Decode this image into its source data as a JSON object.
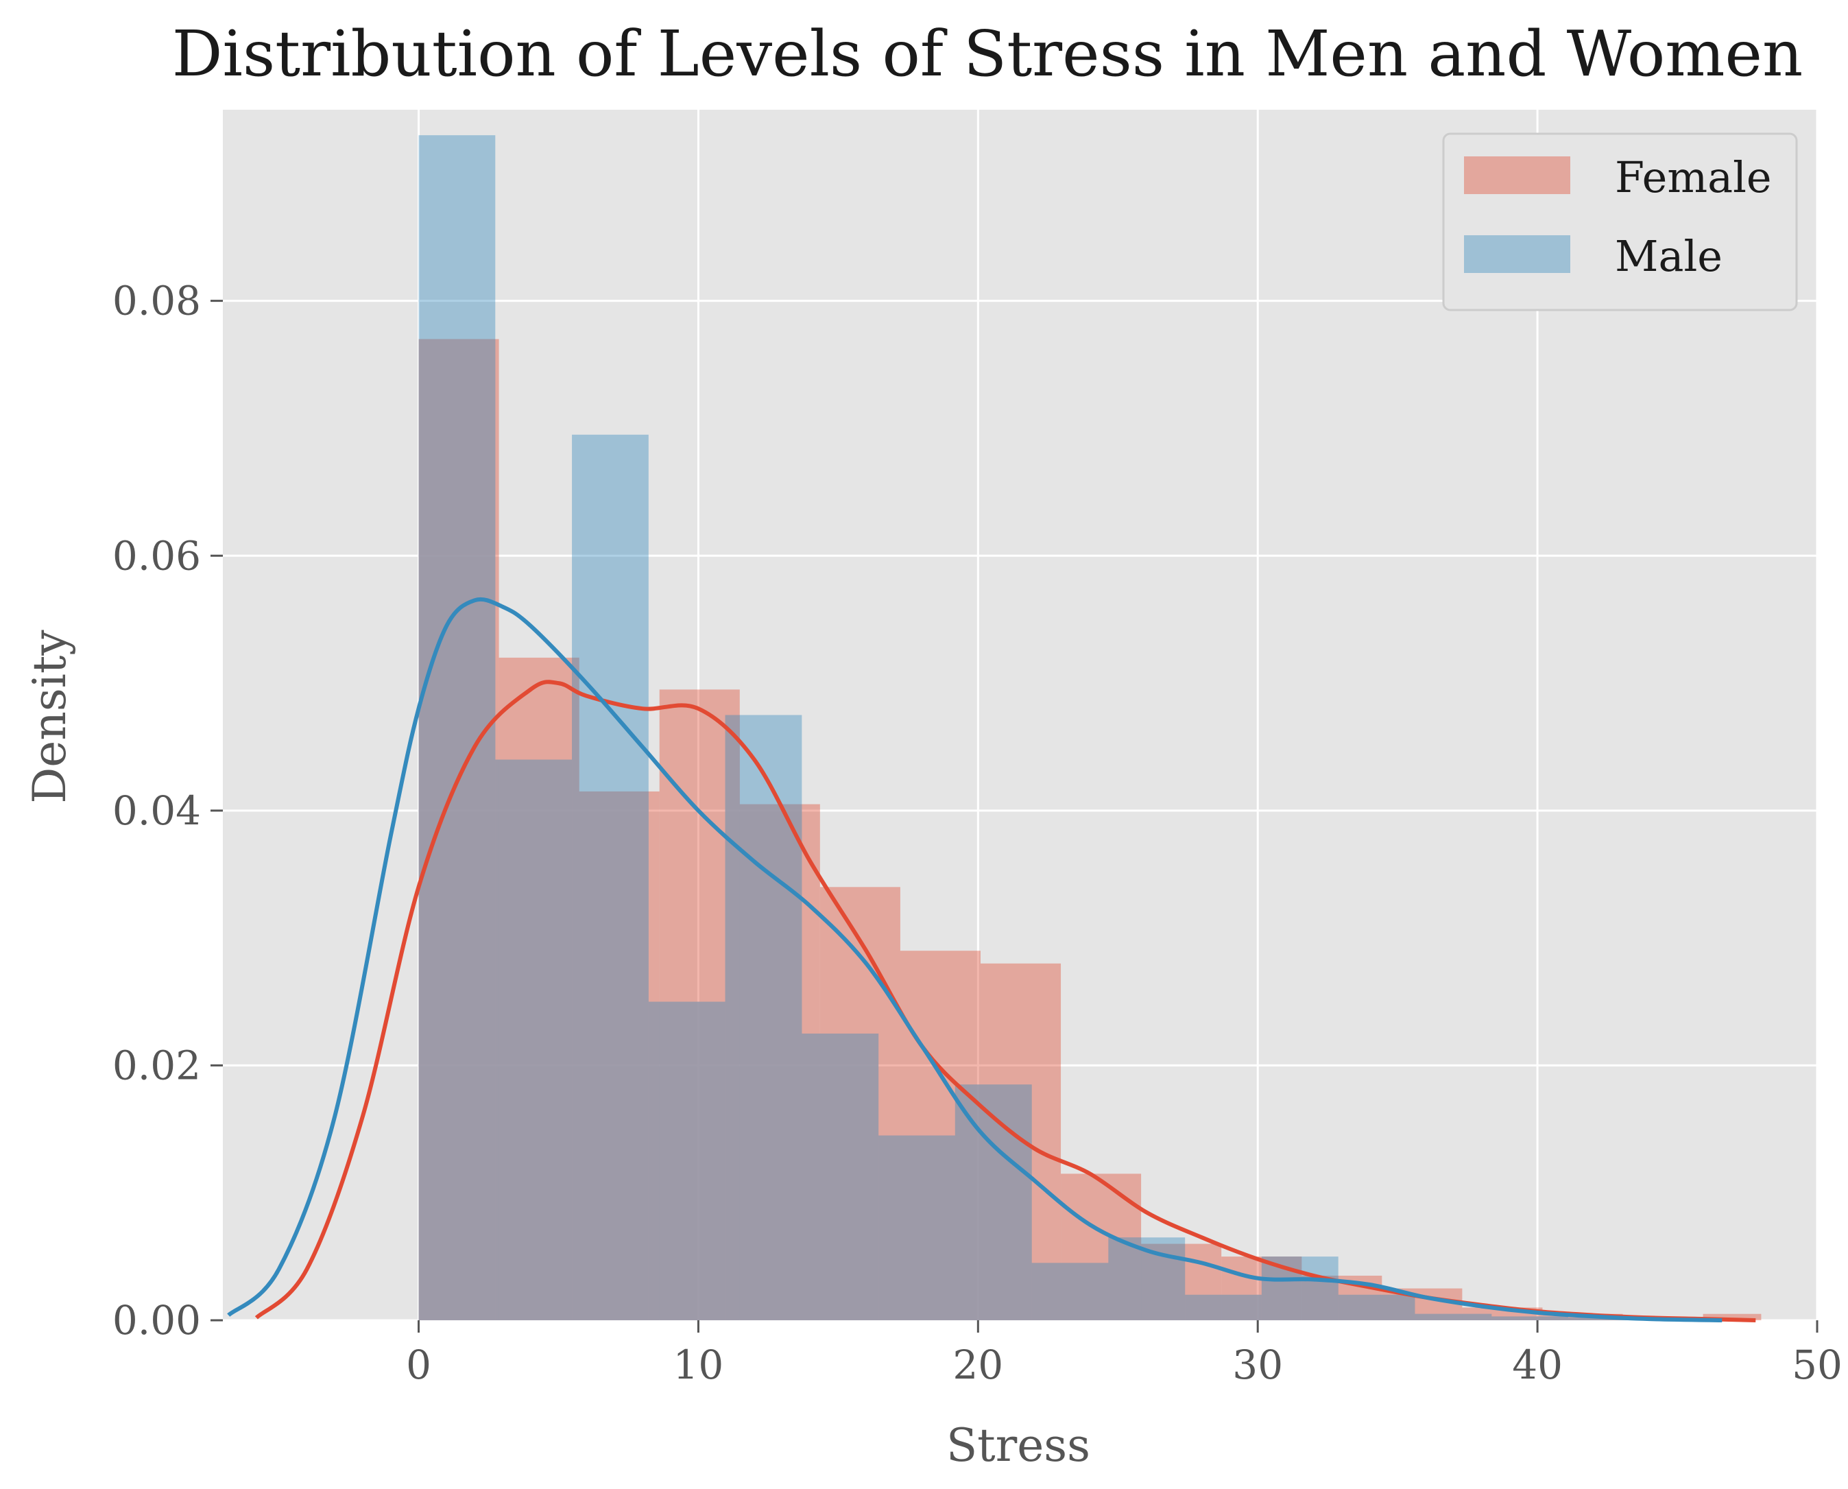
{
  "chart_data": {
    "type": "histogram",
    "title": "Distribution of Levels of Stress in Men and Women",
    "xlabel": "Stress",
    "ylabel": "Density",
    "xlim": [
      -7,
      50
    ],
    "ylim": [
      0,
      0.095
    ],
    "xticks": [
      0,
      10,
      20,
      30,
      40,
      50
    ],
    "xtick_labels": [
      "0",
      "10",
      "20",
      "30",
      "40",
      "50"
    ],
    "yticks": [
      0.0,
      0.02,
      0.04,
      0.06,
      0.08
    ],
    "ytick_labels": [
      "0.00",
      "0.02",
      "0.04",
      "0.06",
      "0.08"
    ],
    "grid": true,
    "legend_position": "top-right",
    "colors": {
      "background": "#e5e5e5",
      "grid": "#ffffff",
      "female_bar": "#e24a33",
      "male_bar": "#348abd",
      "female_line": "#e24a33",
      "male_line": "#348abd",
      "overlap_tint": "#9e9aa8"
    },
    "series": [
      {
        "name": "Female",
        "bin_edges": [
          0,
          2.87,
          5.74,
          8.61,
          11.48,
          14.35,
          17.22,
          20.09,
          22.96,
          25.83,
          28.7,
          31.57,
          34.44,
          37.31,
          40.18,
          43.05,
          45.92,
          48.0
        ],
        "values": [
          0.077,
          0.052,
          0.0415,
          0.0495,
          0.0405,
          0.034,
          0.029,
          0.028,
          0.0115,
          0.006,
          0.005,
          0.0035,
          0.0025,
          0.001,
          0.0005,
          0.0002,
          0.0005
        ],
        "kde": {
          "x": [
            -5.8,
            -4,
            -2,
            0,
            2,
            4,
            5,
            6,
            8,
            10,
            12,
            14,
            16,
            18,
            20,
            22,
            24,
            26,
            28,
            30,
            32,
            34,
            36,
            38,
            40,
            42,
            44,
            46,
            47.8
          ],
          "y": [
            0.0002,
            0.004,
            0.016,
            0.034,
            0.045,
            0.0495,
            0.05,
            0.049,
            0.048,
            0.048,
            0.044,
            0.036,
            0.029,
            0.0215,
            0.017,
            0.0135,
            0.0115,
            0.0085,
            0.0065,
            0.0048,
            0.0035,
            0.0026,
            0.0018,
            0.0012,
            0.0007,
            0.0004,
            0.0002,
            0.0001,
            0.0
          ]
        }
      },
      {
        "name": "Male",
        "bin_edges": [
          0,
          2.74,
          5.48,
          8.22,
          10.96,
          13.7,
          16.44,
          19.18,
          21.92,
          24.66,
          27.4,
          30.14,
          32.88,
          35.62,
          38.36,
          41.1,
          43.84,
          46.58
        ],
        "values": [
          0.093,
          0.044,
          0.0695,
          0.025,
          0.0475,
          0.0225,
          0.0145,
          0.0185,
          0.0045,
          0.0065,
          0.002,
          0.005,
          0.002,
          0.0005,
          0.0003,
          0.0002,
          0.0001
        ],
        "kde": {
          "x": [
            -6.8,
            -5,
            -3,
            -1,
            0,
            1,
            2,
            3,
            4,
            6,
            8,
            10,
            12,
            14,
            16,
            18,
            20,
            22,
            24,
            26,
            28,
            30,
            32,
            34,
            36,
            38,
            40,
            42,
            44,
            46.6
          ],
          "y": [
            0.0004,
            0.004,
            0.016,
            0.038,
            0.048,
            0.0545,
            0.0565,
            0.056,
            0.0545,
            0.05,
            0.045,
            0.04,
            0.036,
            0.0325,
            0.028,
            0.0215,
            0.015,
            0.011,
            0.0075,
            0.0055,
            0.0045,
            0.0033,
            0.0032,
            0.0028,
            0.0018,
            0.0011,
            0.0006,
            0.0003,
            0.0001,
            0.0
          ]
        }
      }
    ]
  }
}
